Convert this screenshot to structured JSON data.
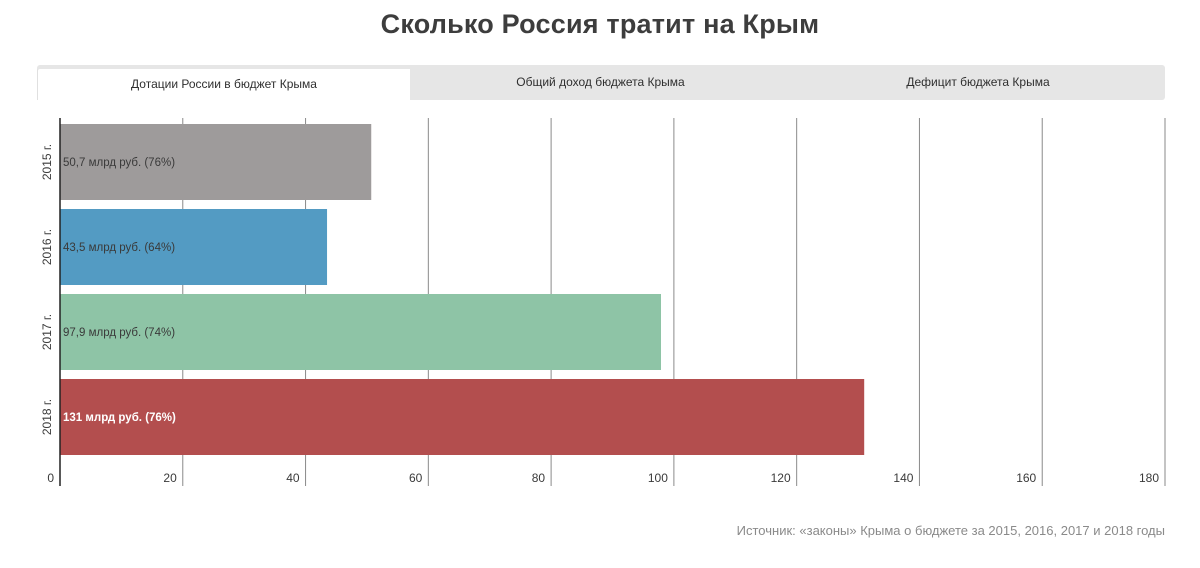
{
  "title": "Сколько Россия тратит на Крым",
  "tabs": [
    {
      "label": "Дотации России в бюджет Крыма",
      "active": true
    },
    {
      "label": "Общий доход бюджета Крыма",
      "active": false
    },
    {
      "label": "Дефицит бюджета Крыма",
      "active": false
    }
  ],
  "source": "Источник: «законы» Крыма о бюджете за 2015, 2016, 2017 и 2018 годы",
  "chart_data": {
    "type": "bar",
    "orientation": "horizontal",
    "categories": [
      "2015 г.",
      "2016 г.",
      "2017 г.",
      "2018 г."
    ],
    "values": [
      50.7,
      43.5,
      97.9,
      131
    ],
    "labels": [
      "50,7 млрд руб. (76%)",
      "43,5 млрд руб. (64%)",
      "97,9 млрд руб. (74%)",
      "131 млрд руб. (76%)"
    ],
    "colors": [
      "#9e9b9b",
      "#539bc3",
      "#8ec4a6",
      "#b34e4e"
    ],
    "label_colors": [
      "#3a3a3a",
      "#3a3a3a",
      "#3a3a3a",
      "#ffffff"
    ],
    "xlim": [
      0,
      180
    ],
    "xticks": [
      0,
      20,
      40,
      60,
      80,
      100,
      120,
      140,
      160,
      180
    ],
    "grid": true,
    "gridline_color": "#8a8a8a",
    "xlabel": "",
    "ylabel": ""
  }
}
